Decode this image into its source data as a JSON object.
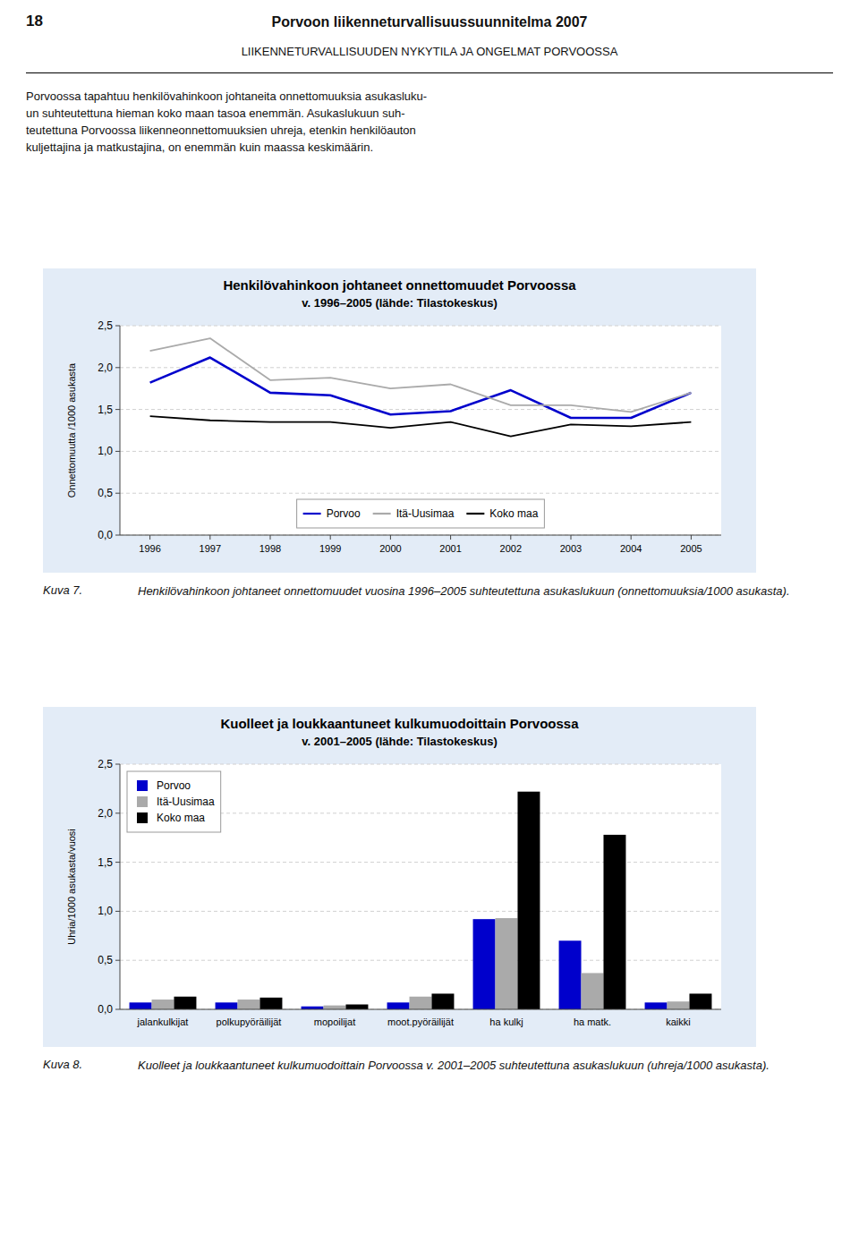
{
  "page": {
    "number": "18",
    "title": "Porvoon liikenneturvallisuussuunnitelma 2007",
    "subtitle": "LIIKENNETURVALLISUUDEN NYKYTILA JA ONGELMAT PORVOOSSA",
    "body": [
      "Porvoossa tapahtuu henkilövahinkoon johtaneita onnettomuuksia asukasluku-",
      "un suhteutettuna hieman koko maan tasoa enemmän. Asukaslukuun suh-",
      "teutettuna Porvoossa liikenneonnettomuuksien uhreja, etenkin henkilöauton",
      "kuljettajina ja matkustajina, on enemmän kuin maassa keskimäärin."
    ]
  },
  "chart_data": [
    {
      "type": "line",
      "title": "Henkilövahinkoon johtaneet onnettomuudet Porvoossa",
      "subtitle": "v. 1996–2005 (lähde: Tilastokeskus)",
      "ylabel": "Onnettomuutta /1000 asukasta",
      "x": [
        1996,
        1997,
        1998,
        1999,
        2000,
        2001,
        2002,
        2003,
        2004,
        2005
      ],
      "xlim": [
        1995.5,
        2005.5
      ],
      "xticks": [
        1996,
        1997,
        1998,
        1999,
        2000,
        2001,
        2002,
        2003,
        2004,
        2005
      ],
      "ylim": [
        0.0,
        2.5
      ],
      "yticks": [
        {
          "value": 0.0,
          "label": "0,0"
        },
        {
          "value": 0.5,
          "label": "0,5"
        },
        {
          "value": 1.0,
          "label": "1,0"
        },
        {
          "value": 1.5,
          "label": "1,5"
        },
        {
          "value": 2.0,
          "label": "2,0"
        },
        {
          "value": 2.5,
          "label": "2,5"
        }
      ],
      "grid": "y",
      "legend": "lower center",
      "series": [
        {
          "name": "Porvoo",
          "color": "#0000cc",
          "values": [
            1.82,
            2.12,
            1.7,
            1.67,
            1.44,
            1.48,
            1.73,
            1.4,
            1.4,
            1.7
          ]
        },
        {
          "name": "Itä-Uusimaa",
          "color": "#aaaaaa",
          "values": [
            2.2,
            2.35,
            1.85,
            1.88,
            1.75,
            1.8,
            1.55,
            1.55,
            1.47,
            1.7
          ]
        },
        {
          "name": "Koko maa",
          "color": "#000000",
          "values": [
            1.42,
            1.37,
            1.35,
            1.35,
            1.28,
            1.35,
            1.18,
            1.32,
            1.3,
            1.35
          ]
        }
      ],
      "caption": {
        "label": "Kuva 7.",
        "text": "Henkilövahinkoon johtaneet onnettomuudet vuosina 1996–2005 suhteutettuna asukaslukuun (onnettomuuksia/1000 asukasta)."
      }
    },
    {
      "type": "bar",
      "title": "Kuolleet ja loukkaantuneet kulkumuodoittain Porvoossa",
      "subtitle": "v. 2001–2005 (lähde: Tilastokeskus)",
      "ylabel": "Uhria/1000 asukasta/vuosi",
      "categories": [
        "jalankulkijat",
        "polkupyöräilijät",
        "mopoilijat",
        "moot.pyöräilijät",
        "ha kulkj",
        "ha matk.",
        "kaikki"
      ],
      "ylim": [
        0.0,
        2.5
      ],
      "yticks": [
        {
          "value": 0.0,
          "label": "0,0"
        },
        {
          "value": 0.5,
          "label": "0,5"
        },
        {
          "value": 1.0,
          "label": "1,0"
        },
        {
          "value": 1.5,
          "label": "1,5"
        },
        {
          "value": 2.0,
          "label": "2,0"
        },
        {
          "value": 2.5,
          "label": "2,5"
        }
      ],
      "grid": "y",
      "legend": "upper left",
      "series": [
        {
          "name": "Porvoo",
          "color": "#0000cc",
          "values": [
            0.07,
            0.07,
            0.03,
            0.07,
            0.92,
            0.7,
            0.07
          ]
        },
        {
          "name": "Itä-Uusimaa",
          "color": "#aaaaaa",
          "values": [
            0.1,
            0.1,
            0.04,
            0.13,
            0.93,
            0.37,
            0.08
          ]
        },
        {
          "name": "Koko maa",
          "color": "#000000",
          "values": [
            0.13,
            0.12,
            0.05,
            0.16,
            2.22,
            1.78,
            0.16
          ]
        }
      ],
      "caption": {
        "label": "Kuva 8.",
        "text": "Kuolleet ja loukkaantuneet kulkumuodoittain Porvoossa v. 2001–2005 suhteutettuna asukaslukuun (uhreja/1000 asukasta)."
      }
    }
  ]
}
